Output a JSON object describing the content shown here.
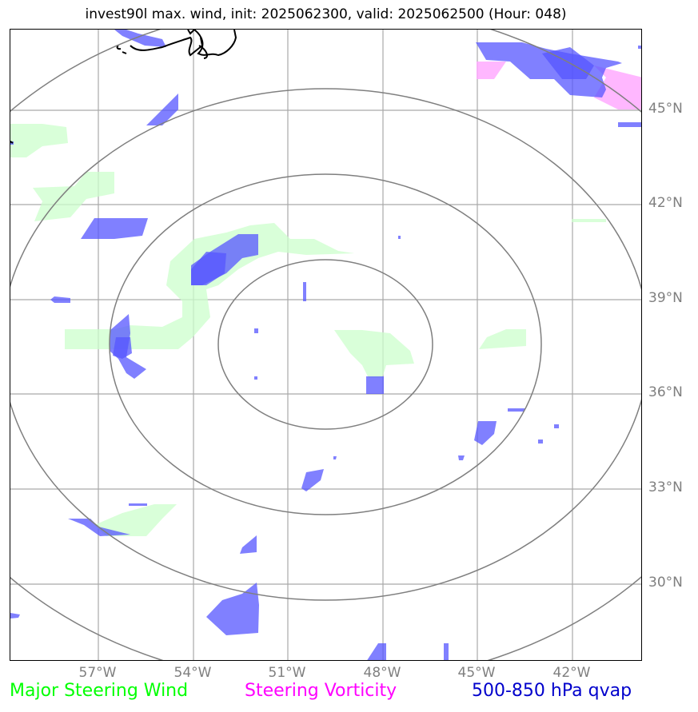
{
  "title": "invest90l max. wind, init: 2025062300, valid: 2025062500 (Hour: 048)",
  "map": {
    "latitude_labels": [
      "45°N",
      "42°N",
      "39°N",
      "36°N",
      "33°N",
      "30°N"
    ],
    "longitude_labels": [
      "57°W",
      "54°W",
      "51°W",
      "48°W",
      "45°W",
      "42°W"
    ],
    "range_rings": 4,
    "colors": {
      "gridline": "#a9a9a9",
      "ring": "#7f7f7f",
      "major_steering_wind": "#ccffcc",
      "steering_vorticity": "#ffaaff",
      "qvap": "#5555ff",
      "coastline": "#000000"
    }
  },
  "legend": [
    {
      "label": "Major Steering Wind",
      "color": "#00ff00"
    },
    {
      "label": "Steering Vorticity",
      "color": "#ff00ff"
    },
    {
      "label": "500-850 hPa qvap",
      "color": "#0000cc"
    }
  ]
}
